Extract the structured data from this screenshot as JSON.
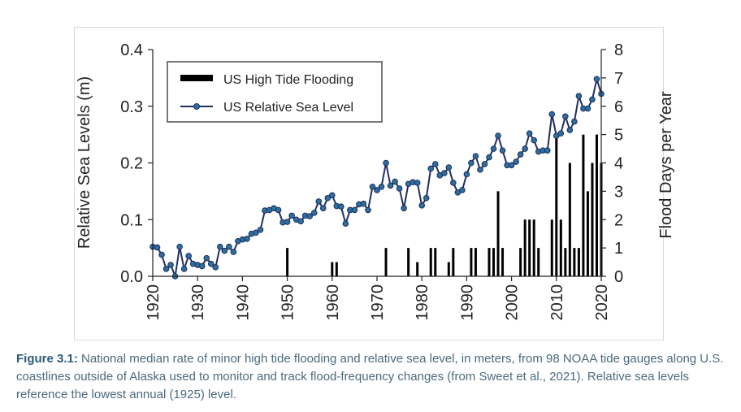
{
  "chart_data": {
    "type": "bar+line",
    "x": [
      1920,
      1921,
      1922,
      1923,
      1924,
      1925,
      1926,
      1927,
      1928,
      1929,
      1930,
      1931,
      1932,
      1933,
      1934,
      1935,
      1936,
      1937,
      1938,
      1939,
      1940,
      1941,
      1942,
      1943,
      1944,
      1945,
      1946,
      1947,
      1948,
      1949,
      1950,
      1951,
      1952,
      1953,
      1954,
      1955,
      1956,
      1957,
      1958,
      1959,
      1960,
      1961,
      1962,
      1963,
      1964,
      1965,
      1966,
      1967,
      1968,
      1969,
      1970,
      1971,
      1972,
      1973,
      1974,
      1975,
      1976,
      1977,
      1978,
      1979,
      1980,
      1981,
      1982,
      1983,
      1984,
      1985,
      1986,
      1987,
      1988,
      1989,
      1990,
      1991,
      1992,
      1993,
      1994,
      1995,
      1996,
      1997,
      1998,
      1999,
      2000,
      2001,
      2002,
      2003,
      2004,
      2005,
      2006,
      2007,
      2008,
      2009,
      2010,
      2011,
      2012,
      2013,
      2014,
      2015,
      2016,
      2017,
      2018,
      2019,
      2020
    ],
    "series": [
      {
        "name": "US Relative Sea Level",
        "axis": "left",
        "values": [
          0.052,
          0.051,
          0.038,
          0.013,
          0.02,
          0.0,
          0.052,
          0.013,
          0.036,
          0.022,
          0.02,
          0.018,
          0.032,
          0.022,
          0.016,
          0.052,
          0.045,
          0.052,
          0.043,
          0.062,
          0.065,
          0.066,
          0.075,
          0.077,
          0.082,
          0.116,
          0.117,
          0.12,
          0.117,
          0.095,
          0.096,
          0.107,
          0.1,
          0.097,
          0.107,
          0.106,
          0.112,
          0.132,
          0.12,
          0.138,
          0.143,
          0.124,
          0.123,
          0.093,
          0.117,
          0.117,
          0.127,
          0.128,
          0.117,
          0.158,
          0.152,
          0.158,
          0.2,
          0.16,
          0.167,
          0.155,
          0.12,
          0.163,
          0.166,
          0.165,
          0.125,
          0.138,
          0.19,
          0.198,
          0.178,
          0.182,
          0.192,
          0.165,
          0.148,
          0.152,
          0.18,
          0.2,
          0.212,
          0.188,
          0.198,
          0.21,
          0.225,
          0.248,
          0.222,
          0.196,
          0.196,
          0.202,
          0.215,
          0.225,
          0.252,
          0.24,
          0.22,
          0.222,
          0.222,
          0.286,
          0.248,
          0.252,
          0.282,
          0.258,
          0.273,
          0.318,
          0.296,
          0.296,
          0.312,
          0.348,
          0.322
        ]
      },
      {
        "name": "US High Tide Flooding",
        "axis": "right",
        "values": [
          0,
          0,
          0,
          0,
          0,
          0,
          0,
          0,
          0,
          0,
          0,
          0,
          0,
          0,
          0,
          0,
          0,
          0,
          0,
          0,
          0,
          0,
          0,
          0,
          0,
          0,
          0,
          0,
          0,
          0,
          1,
          0,
          0,
          0,
          0,
          0,
          0,
          0,
          0,
          0,
          0.5,
          0.5,
          0,
          0,
          0,
          0,
          0,
          0,
          0,
          0,
          0,
          0,
          1,
          0,
          0,
          0,
          0,
          1,
          0,
          0.5,
          0,
          0,
          1,
          1,
          0,
          0,
          0.5,
          1,
          0,
          0,
          0,
          1,
          1,
          0,
          0,
          1,
          1,
          3,
          1,
          0,
          0,
          0,
          1,
          2,
          2,
          2,
          1,
          0,
          0,
          2,
          5,
          2,
          1,
          4,
          1,
          1,
          5,
          3,
          4,
          5,
          4
        ]
      }
    ],
    "y_left": {
      "label": "Relative Sea Levels (m)",
      "range": [
        0,
        0.4
      ],
      "ticks": [
        "0.0",
        "0.1",
        "0.2",
        "0.3",
        "0.4"
      ]
    },
    "y_right": {
      "label": "Flood Days per Year",
      "range": [
        0,
        8
      ],
      "ticks": [
        "0",
        "1",
        "2",
        "3",
        "4",
        "5",
        "6",
        "7",
        "8"
      ]
    },
    "x_axis": {
      "range": [
        1920,
        2020
      ],
      "ticks": [
        "1920",
        "1930",
        "1940",
        "1950",
        "1960",
        "1970",
        "1980",
        "1990",
        "2000",
        "2010",
        "2020"
      ]
    },
    "legend": {
      "placement": "top-left",
      "entries": [
        "US High Tide Flooding",
        "US Relative Sea Level"
      ]
    },
    "grid": false,
    "colors": {
      "line": "#1f2f5f",
      "marker": "#2e6e9e",
      "bar": "#000000"
    }
  },
  "caption": {
    "label": "Figure 3.1:",
    "text": " National median rate of minor high tide flooding and relative sea level, in meters, from 98 NOAA tide gauges along U.S. coastlines outside of Alaska used to monitor and track flood-frequency changes (from Sweet et al., 2021). Relative sea levels reference the lowest annual (1925) level."
  }
}
